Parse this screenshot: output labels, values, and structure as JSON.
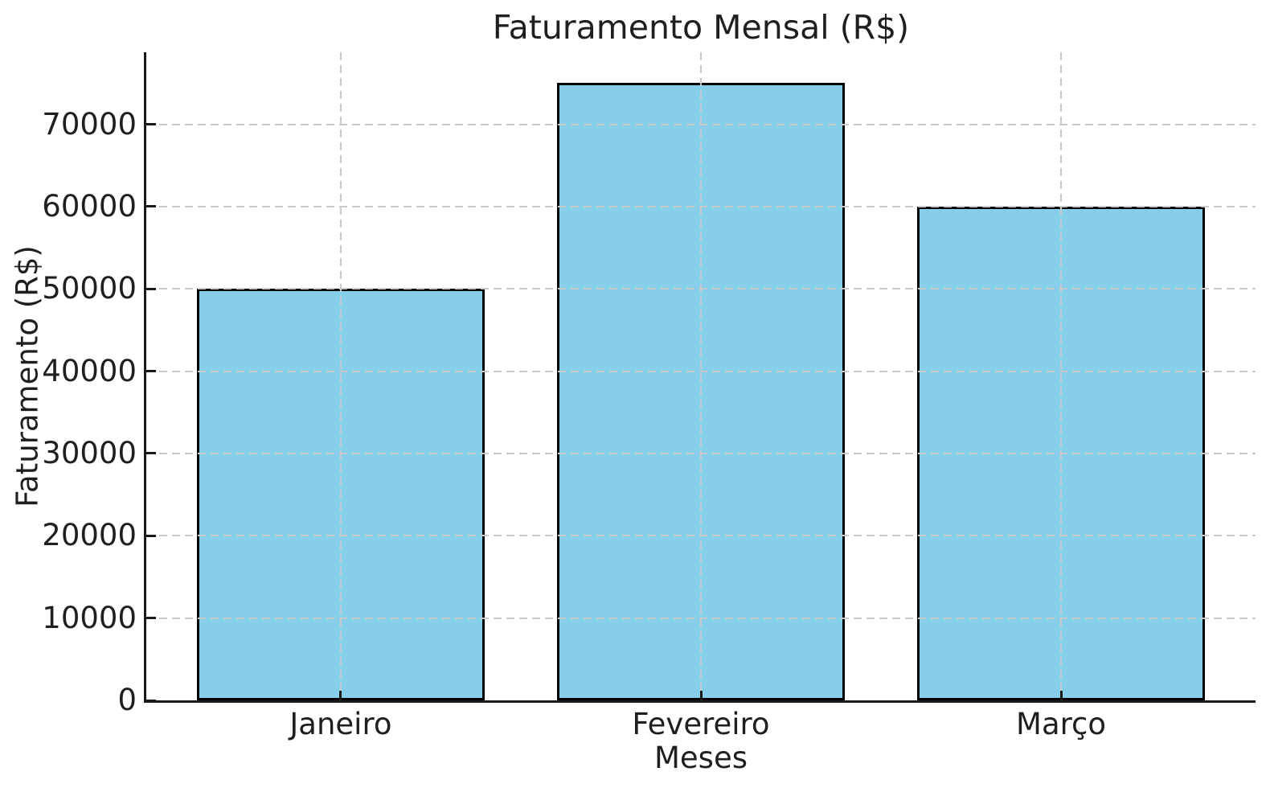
{
  "figure": {
    "background": "#ffffff"
  },
  "chart_data": {
    "type": "bar",
    "title": "Faturamento Mensal (R$)",
    "xlabel": "Meses",
    "ylabel": "Faturamento (R$)",
    "categories": [
      "Janeiro",
      "Fevereiro",
      "Março"
    ],
    "values": [
      50000,
      75000,
      60000
    ],
    "bar_width": 0.8,
    "ylim": [
      0,
      78750
    ],
    "yticks": [
      0,
      10000,
      20000,
      30000,
      40000,
      50000,
      60000,
      70000
    ],
    "grid": {
      "horizontal": true,
      "vertical": true,
      "style": "dashed",
      "color": "#c9c9c9",
      "drawn_above_bars": true
    },
    "colors": {
      "bar_fill": "#87CEEB",
      "bar_edge": "#000000",
      "spine": "#1a1a1a",
      "text": "#1f1f1f"
    },
    "spines": {
      "left": true,
      "bottom": true,
      "top": false,
      "right": false
    },
    "tick_direction": "in",
    "legend": false
  }
}
